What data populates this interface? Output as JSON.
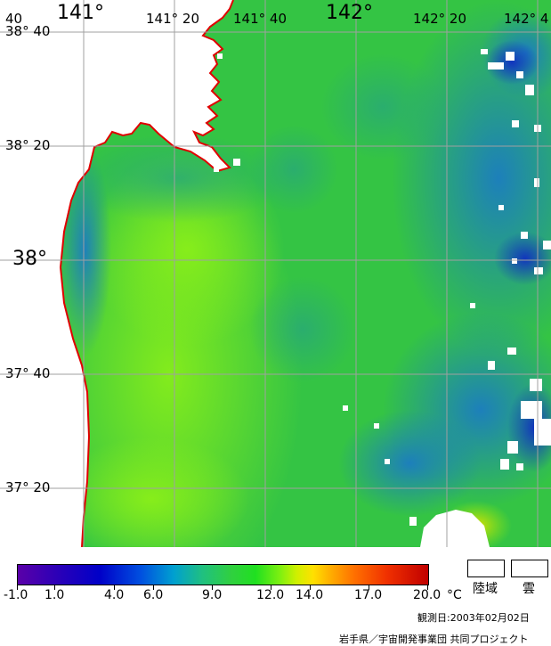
{
  "map": {
    "lon_labels": [
      {
        "text": "141°",
        "size": "big"
      },
      {
        "text": "141° 20",
        "size": "small"
      },
      {
        "text": "141° 40",
        "size": "small"
      },
      {
        "text": "142°",
        "size": "big"
      },
      {
        "text": "142° 20",
        "size": "small"
      },
      {
        "text": "142° 4",
        "size": "small"
      }
    ],
    "lat_labels": [
      {
        "text": "38° 40",
        "size": "small"
      },
      {
        "text": "38° 20",
        "size": "small"
      },
      {
        "text": "38°",
        "size": "big"
      },
      {
        "text": "37° 40",
        "size": "small"
      },
      {
        "text": "37° 20",
        "size": "small"
      }
    ],
    "corner_label": "40",
    "colors": {
      "land": "#ffffff",
      "coastline": "#e00000",
      "grid": "#a0a0a0",
      "sea_dominant": "#30c840",
      "sea_warm": "#70e020",
      "sea_cool": "#2090c0",
      "cloud": "#ffffff"
    }
  },
  "colorbar": {
    "unit": "°C",
    "ticks": [
      "-1.0",
      "1.0",
      "4.0",
      "6.0",
      "9.0",
      "12.0",
      "14.0",
      "17.0",
      "20.0"
    ]
  },
  "legend": {
    "land_label": "陸域",
    "cloud_label": "雲"
  },
  "footer": {
    "observation": "観測日:2003年02月02日",
    "credit": "岩手県／宇宙開発事業団 共同プロジェクト"
  }
}
